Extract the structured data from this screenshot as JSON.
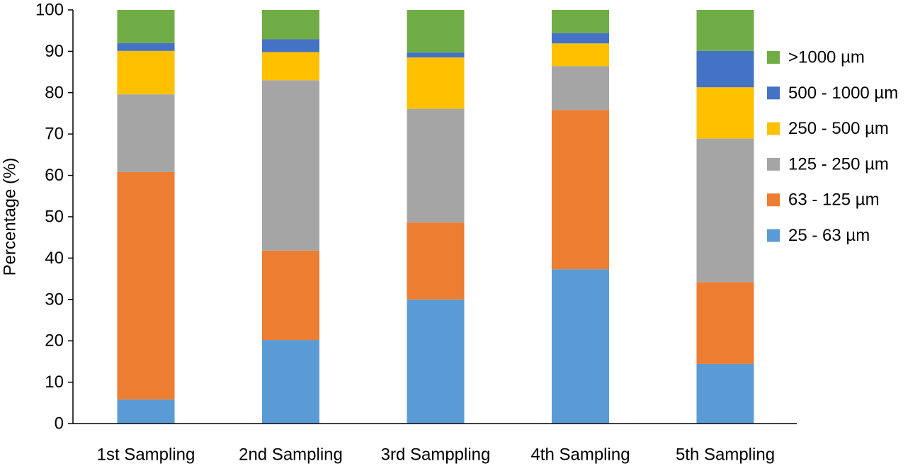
{
  "chart_data": {
    "type": "bar",
    "stacked": true,
    "title": "",
    "xlabel": "",
    "ylabel": "Percentage (%)",
    "ylim": [
      0,
      100
    ],
    "yticks": [
      0,
      10,
      20,
      30,
      40,
      50,
      60,
      70,
      80,
      90,
      100
    ],
    "grid": false,
    "legend_position": "right",
    "categories": [
      "1st Sampling",
      "2nd Sampling",
      "3rd Samppling",
      "4th Sampling",
      "5th Sampling"
    ],
    "series": [
      {
        "name": "25 - 63 µm",
        "color": "#5B9BD5",
        "values": [
          5.8,
          20.2,
          30.0,
          37.3,
          14.4
        ]
      },
      {
        "name": "63 - 125 µm",
        "color": "#ED7D31",
        "values": [
          55.0,
          21.6,
          18.6,
          38.5,
          19.8
        ]
      },
      {
        "name": "125 - 250 µm",
        "color": "#A5A5A5",
        "values": [
          18.8,
          41.2,
          27.5,
          10.6,
          34.7
        ]
      },
      {
        "name": "250 - 500 µm",
        "color": "#FFC000",
        "values": [
          10.5,
          6.8,
          12.4,
          5.5,
          12.4
        ]
      },
      {
        "name": "500 - 1000 µm",
        "color": "#4472C4",
        "values": [
          1.9,
          3.1,
          1.2,
          2.5,
          8.8
        ]
      },
      {
        "name": ">1000 µm",
        "color": "#70AD47",
        "values": [
          8.0,
          7.1,
          10.3,
          5.6,
          9.9
        ]
      }
    ]
  }
}
